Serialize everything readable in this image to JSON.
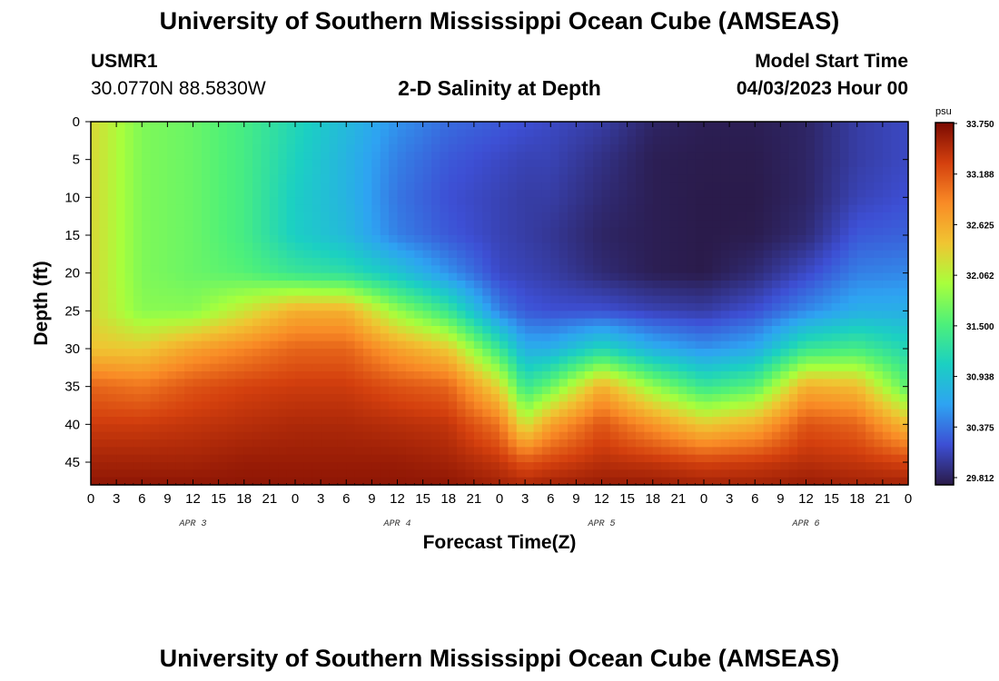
{
  "header": {
    "title": "University of Southern Mississippi Ocean Cube (AMSEAS)",
    "station_id": "USMR1",
    "coordinates": "30.0770N  88.5830W",
    "plot_title": "2-D Salinity at Depth",
    "model_start_label": "Model Start Time",
    "model_start_value": "04/03/2023 Hour 00"
  },
  "footer": {
    "title": "University of Southern Mississippi Ocean Cube (AMSEAS)"
  },
  "colors": {
    "colormap": [
      "#2a1a48",
      "#3d4fd4",
      "#2ea3f2",
      "#1bd0c2",
      "#4df07a",
      "#a8ff3c",
      "#f0c532",
      "#f98b26",
      "#d4400e",
      "#7a0a02"
    ]
  },
  "chart_data": {
    "type": "heatmap",
    "title": "2-D Salinity at Depth",
    "xlabel": "Forecast Time(Z)",
    "ylabel": "Depth (ft)",
    "x_tick_labels": [
      "0",
      "3",
      "6",
      "9",
      "12",
      "15",
      "18",
      "21",
      "0",
      "3",
      "6",
      "9",
      "12",
      "15",
      "18",
      "21",
      "0",
      "3",
      "6",
      "9",
      "12",
      "15",
      "18",
      "21",
      "0",
      "3",
      "6",
      "9",
      "12",
      "15",
      "18",
      "21",
      "0"
    ],
    "date_labels": [
      "APR 3",
      "APR 4",
      "APR 5",
      "APR 6"
    ],
    "x_range_hours": [
      0,
      96
    ],
    "y_ticks": [
      0,
      5,
      10,
      15,
      20,
      25,
      30,
      35,
      40,
      45
    ],
    "y_range_ft": [
      0,
      48
    ],
    "colorbar": {
      "unit": "psu",
      "min": 29.812,
      "max": 33.75,
      "tick_labels": [
        "33.750",
        "33.188",
        "32.625",
        "32.062",
        "31.500",
        "30.938",
        "30.375",
        "29.812"
      ]
    },
    "hours": [
      0,
      6,
      12,
      18,
      24,
      30,
      36,
      42,
      48,
      51,
      54,
      60,
      66,
      72,
      78,
      84,
      90,
      96
    ],
    "depths_ft": [
      0,
      5,
      10,
      15,
      20,
      25,
      30,
      35,
      40,
      45,
      48
    ],
    "salinity_psu": [
      [
        32.3,
        32.3,
        32.3,
        32.3,
        32.3,
        32.3,
        32.45,
        33.1,
        33.35,
        33.55,
        33.65
      ],
      [
        31.8,
        31.8,
        31.8,
        31.8,
        31.8,
        31.85,
        32.4,
        33.0,
        33.35,
        33.55,
        33.65
      ],
      [
        31.7,
        31.7,
        31.7,
        31.7,
        31.7,
        31.85,
        32.7,
        33.2,
        33.4,
        33.55,
        33.65
      ],
      [
        31.5,
        31.5,
        31.5,
        31.5,
        31.6,
        32.2,
        32.9,
        33.3,
        33.45,
        33.6,
        33.65
      ],
      [
        31.2,
        31.15,
        31.1,
        31.1,
        31.4,
        32.6,
        33.1,
        33.35,
        33.5,
        33.6,
        33.65
      ],
      [
        30.9,
        30.85,
        30.85,
        30.9,
        31.3,
        32.6,
        33.1,
        33.35,
        33.5,
        33.6,
        33.65
      ],
      [
        30.6,
        30.5,
        30.45,
        30.5,
        31.0,
        31.9,
        32.7,
        33.2,
        33.45,
        33.6,
        33.65
      ],
      [
        30.4,
        30.3,
        30.25,
        30.3,
        30.6,
        31.4,
        32.4,
        33.1,
        33.4,
        33.55,
        33.65
      ],
      [
        30.3,
        30.2,
        30.15,
        30.15,
        30.2,
        30.5,
        31.4,
        32.3,
        33.0,
        33.4,
        33.55
      ],
      [
        30.25,
        30.15,
        30.1,
        30.1,
        30.15,
        30.3,
        30.8,
        31.4,
        32.2,
        33.2,
        33.5
      ],
      [
        30.2,
        30.15,
        30.1,
        30.05,
        30.1,
        30.25,
        30.8,
        31.7,
        32.7,
        33.3,
        33.55
      ],
      [
        30.1,
        30.0,
        29.95,
        29.9,
        29.95,
        30.25,
        31.2,
        32.6,
        33.2,
        33.45,
        33.6
      ],
      [
        29.9,
        29.85,
        29.85,
        29.85,
        29.85,
        30.15,
        30.8,
        31.9,
        32.8,
        33.4,
        33.6
      ],
      [
        29.85,
        29.83,
        29.82,
        29.82,
        29.82,
        30.1,
        30.6,
        31.4,
        32.4,
        33.3,
        33.55
      ],
      [
        29.85,
        29.83,
        29.82,
        29.83,
        29.95,
        30.25,
        30.75,
        31.6,
        32.6,
        33.35,
        33.55
      ],
      [
        29.9,
        29.9,
        29.9,
        29.95,
        30.2,
        30.55,
        31.4,
        32.6,
        33.2,
        33.45,
        33.6
      ],
      [
        30.1,
        30.1,
        30.15,
        30.3,
        30.5,
        30.8,
        31.5,
        32.5,
        33.1,
        33.4,
        33.55
      ],
      [
        30.2,
        30.2,
        30.25,
        30.35,
        30.55,
        30.8,
        31.2,
        31.6,
        32.5,
        33.3,
        33.55
      ]
    ]
  }
}
